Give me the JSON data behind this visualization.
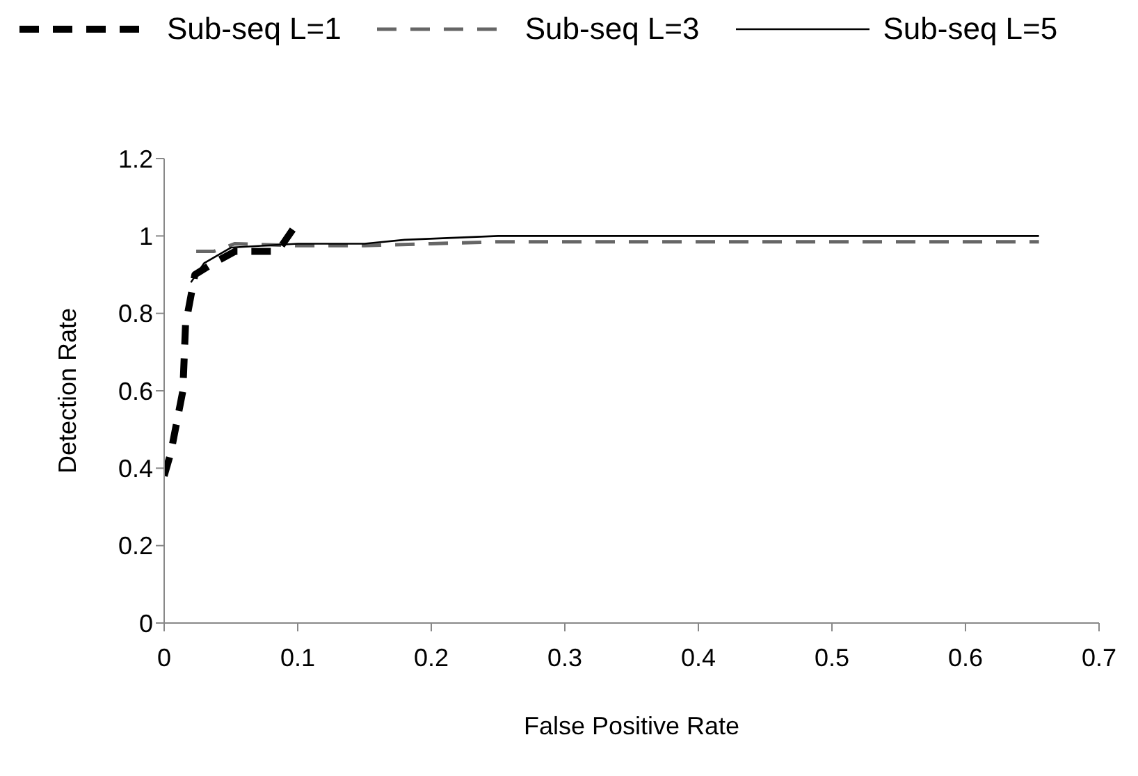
{
  "chart_data": {
    "type": "line",
    "xlabel": "False Positive Rate",
    "ylabel": "Detection Rate",
    "xlim": [
      0,
      0.7
    ],
    "xticks": [
      0,
      0.1,
      0.2,
      0.3,
      0.4,
      0.5,
      0.6,
      0.7
    ],
    "ylim": [
      0,
      1.2
    ],
    "yticks": [
      0,
      0.2,
      0.4,
      0.6,
      0.8,
      1,
      1.2
    ],
    "grid": false,
    "legend": "top",
    "marker": "none",
    "series": [
      {
        "name": "Sub-seq L=1",
        "color": "#000000",
        "line_style": "dashed",
        "x": [
          0,
          0.005,
          0.014,
          0.016,
          0.023,
          0.037,
          0.053,
          0.085,
          0.099
        ],
        "values": [
          0.38,
          0.44,
          0.6,
          0.77,
          0.9,
          0.93,
          0.96,
          0.96,
          1.03
        ]
      },
      {
        "name": "Sub-seq L=3",
        "color": "#666666",
        "line_style": "dashed",
        "x": [
          0.024,
          0.037,
          0.053,
          0.1,
          0.15,
          0.2,
          0.25,
          0.4,
          0.655
        ],
        "values": [
          0.96,
          0.96,
          0.98,
          0.975,
          0.975,
          0.98,
          0.985,
          0.985,
          0.985
        ]
      },
      {
        "name": "Sub-seq L=5",
        "color": "#000000",
        "line_style": "solid",
        "x": [
          0.02,
          0.03,
          0.05,
          0.1,
          0.15,
          0.18,
          0.25,
          0.4,
          0.655
        ],
        "values": [
          0.88,
          0.93,
          0.97,
          0.98,
          0.98,
          0.99,
          1.0,
          1.0,
          1.0
        ]
      }
    ]
  }
}
